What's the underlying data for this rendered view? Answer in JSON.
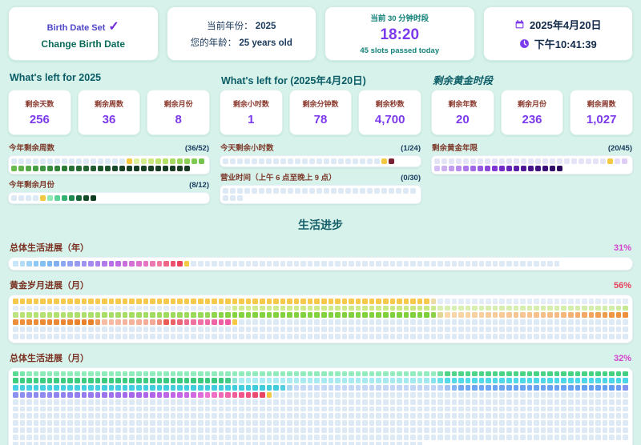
{
  "topbar": {
    "birth": {
      "status": "Birth Date Set",
      "check": "✓",
      "action": "Change Birth Date"
    },
    "year": {
      "l1_label": "当前年份：",
      "l1_value": "2025",
      "l2_label": "您的年龄：",
      "l2_value": "25 years old"
    },
    "slot": {
      "title": "当前 30 分钟时段",
      "value": "18:20",
      "subtitle": "45 slots passed today"
    },
    "datetime": {
      "date": "2025年4月20日",
      "time": "下午10:41:39"
    }
  },
  "columns": [
    {
      "header": "What's left for 2025",
      "stats": [
        {
          "label": "剩余天数",
          "value": "256"
        },
        {
          "label": "剩余周数",
          "value": "36"
        },
        {
          "label": "剩余月份",
          "value": "8"
        }
      ],
      "bars": [
        {
          "label": "今年剩余周数",
          "fraction": "(36/52)"
        },
        {
          "label": "今年剩余月份",
          "fraction": "(8/12)"
        }
      ]
    },
    {
      "header": "What's left for (2025年4月20日)",
      "stats": [
        {
          "label": "剩余小时数",
          "value": "1"
        },
        {
          "label": "剩余分钟数",
          "value": "78"
        },
        {
          "label": "剩余秒数",
          "value": "4,700"
        }
      ],
      "bars": [
        {
          "label": "今天剩余小时数",
          "fraction": "(1/24)"
        },
        {
          "label": "营业时间（上午 6 点至晚上 9 点）",
          "fraction": "(0/30)"
        }
      ]
    },
    {
      "header": "剩余黄金时段",
      "stats": [
        {
          "label": "剩余年数",
          "value": "20"
        },
        {
          "label": "剩余月份",
          "value": "236"
        },
        {
          "label": "剩余周数",
          "value": "1,027"
        }
      ],
      "bars": [
        {
          "label": "剩余黄金年限",
          "fraction": "(20/45)"
        }
      ]
    }
  ],
  "life": {
    "title": "生活进步",
    "bars": [
      {
        "label": "总体生活进展（年）",
        "percent": "31%",
        "percent_color": "#d544cf"
      },
      {
        "label": "黄金岁月进展（月）",
        "percent": "56%",
        "percent_color": "#e8415c"
      },
      {
        "label": "总体生活进展（月）",
        "percent": "32%",
        "percent_color": "#d544cf"
      }
    ]
  },
  "grids": {
    "weeks_year": {
      "total": 52,
      "passed": 16,
      "current": true,
      "mode": "future",
      "empty": "#dde9f4",
      "current_color": "#f3c843",
      "stops": [
        [
          0,
          "#dff09d"
        ],
        [
          0.1,
          "#b9e468"
        ],
        [
          0.25,
          "#79c84e"
        ],
        [
          0.4,
          "#3f9a40"
        ],
        [
          0.55,
          "#256b33"
        ],
        [
          0.75,
          "#163f25"
        ],
        [
          1,
          "#183a22"
        ]
      ]
    },
    "months_year": {
      "total": 12,
      "passed": 4,
      "current": true,
      "mode": "future",
      "empty": "#dde9f4",
      "current_color": "#f3c843",
      "stops": [
        [
          0,
          "#8fe8b6"
        ],
        [
          0.25,
          "#41c787"
        ],
        [
          0.5,
          "#1e8a50"
        ],
        [
          0.75,
          "#14532d"
        ],
        [
          1,
          "#0f3d22"
        ]
      ]
    },
    "hours_today": {
      "total": 24,
      "passed": 22,
      "current": true,
      "mode": "future",
      "empty": "#dde9f4",
      "current_color": "#f3c843",
      "stops": [
        [
          0,
          "#7a2033"
        ],
        [
          1,
          "#7a2033"
        ]
      ]
    },
    "business_hours": {
      "total": 30,
      "passed": 30,
      "current": false,
      "mode": "future",
      "empty": "#dde9f4",
      "current_color": "#f3c843",
      "stops": [
        [
          0,
          "#dde9f4"
        ],
        [
          1,
          "#dde9f4"
        ]
      ]
    },
    "golden_years": {
      "total": 45,
      "passed": 24,
      "current": true,
      "mode": "future",
      "empty": "#e4e4f6",
      "current_color": "#f3c843",
      "stops": [
        [
          0,
          "#e6dcf8"
        ],
        [
          0.15,
          "#cfb2f2"
        ],
        [
          0.35,
          "#a56ee8"
        ],
        [
          0.55,
          "#7a2fd0"
        ],
        [
          0.75,
          "#4c1594"
        ],
        [
          1,
          "#2b0a5e"
        ]
      ]
    },
    "life_years": {
      "total": 80,
      "passed": 25,
      "current": true,
      "mode": "past",
      "cols": 90,
      "empty": "#dde9f4",
      "current_color": "#f3c843",
      "stops": [
        [
          0,
          "#c9e6f9"
        ],
        [
          0.12,
          "#8ccaf4"
        ],
        [
          0.22,
          "#7db4f2"
        ],
        [
          0.35,
          "#96a0f2"
        ],
        [
          0.48,
          "#a887ef"
        ],
        [
          0.6,
          "#b96ce6"
        ],
        [
          0.7,
          "#d26ed8"
        ],
        [
          0.8,
          "#ea74c2"
        ],
        [
          0.88,
          "#f07a9e"
        ],
        [
          0.95,
          "#ee5372"
        ],
        [
          1,
          "#e8435c"
        ]
      ]
    },
    "golden_months": {
      "total": 540,
      "passed": 302,
      "current": true,
      "mode": "past",
      "cols": 90,
      "empty": "#dde9f4",
      "current_color": "#f3c843",
      "stops": [
        [
          0,
          "#f6c84b"
        ],
        [
          0.2,
          "#f6c84b"
        ],
        [
          0.205,
          "#e3ecf7"
        ],
        [
          0.4,
          "#e3ecf7"
        ],
        [
          0.405,
          "#d3eb90"
        ],
        [
          0.5,
          "#c9e881"
        ],
        [
          0.505,
          "#d9efb2"
        ],
        [
          0.59,
          "#d2edaa"
        ],
        [
          0.6,
          "#b8e276"
        ],
        [
          0.69,
          "#98d957"
        ],
        [
          0.7,
          "#84d341"
        ],
        [
          0.8,
          "#7ed03b"
        ],
        [
          0.805,
          "#f9d9ad"
        ],
        [
          0.86,
          "#f5bc85"
        ],
        [
          0.89,
          "#ee9340"
        ],
        [
          0.935,
          "#e8802b"
        ],
        [
          0.94,
          "#f6bda4"
        ],
        [
          0.965,
          "#f3a894"
        ],
        [
          0.97,
          "#ea5b55"
        ],
        [
          0.985,
          "#ee74a8"
        ],
        [
          1,
          "#ef57a2"
        ]
      ]
    },
    "overall_months": {
      "total": 960,
      "passed": 307,
      "current": true,
      "mode": "past",
      "cols": 90,
      "empty": "#dde9f4",
      "current_color": "#f3c843",
      "stops": [
        [
          0,
          "#5cdb95"
        ],
        [
          0.006,
          "#8debb9"
        ],
        [
          0.2,
          "#93ecbf"
        ],
        [
          0.205,
          "#4fd489"
        ],
        [
          0.29,
          "#45d182"
        ],
        [
          0.295,
          "#3ccd80"
        ],
        [
          0.395,
          "#38c97e"
        ],
        [
          0.4,
          "#abecf1"
        ],
        [
          0.49,
          "#a2eaef"
        ],
        [
          0.5,
          "#54d9e9"
        ],
        [
          0.585,
          "#4ad5e6"
        ],
        [
          0.59,
          "#44d0e1"
        ],
        [
          0.715,
          "#3ecbdb"
        ],
        [
          0.72,
          "#c7daf6"
        ],
        [
          0.79,
          "#c0d5f5"
        ],
        [
          0.8,
          "#6fa8f1"
        ],
        [
          0.875,
          "#639ff0"
        ],
        [
          0.88,
          "#8b93f1"
        ],
        [
          0.91,
          "#9180ef"
        ],
        [
          0.94,
          "#a965e9"
        ],
        [
          0.965,
          "#ca66e5"
        ],
        [
          0.975,
          "#ef73d1"
        ],
        [
          0.99,
          "#f2568d"
        ],
        [
          1,
          "#e94562"
        ]
      ]
    }
  }
}
